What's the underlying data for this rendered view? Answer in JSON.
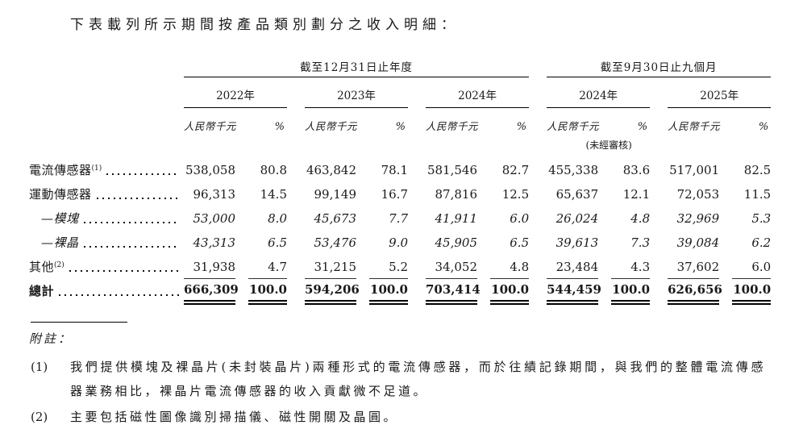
{
  "intro": "下表載列所示期間按產品類別劃分之收入明細：",
  "table": {
    "groups": [
      {
        "label": "截至12月31日止年度",
        "years": [
          "2022年",
          "2023年",
          "2024年"
        ]
      },
      {
        "label": "截至9月30日止九個月",
        "years": [
          "2024年",
          "2025年"
        ]
      }
    ],
    "unit_header": "人民幣千元",
    "pct_header": "%",
    "unaudited_note": "(未經審核)",
    "rows": [
      {
        "label": "電流傳感器",
        "sup": "(1)",
        "italic": false,
        "values": [
          "538,058",
          "80.8",
          "463,842",
          "78.1",
          "581,546",
          "82.7",
          "455,338",
          "83.6",
          "517,001",
          "82.5"
        ]
      },
      {
        "label": "運動傳感器",
        "sup": "",
        "italic": false,
        "values": [
          "96,313",
          "14.5",
          "99,149",
          "16.7",
          "87,816",
          "12.5",
          "65,637",
          "12.1",
          "72,053",
          "11.5"
        ]
      },
      {
        "label": "—模塊",
        "sup": "",
        "italic": true,
        "values": [
          "53,000",
          "8.0",
          "45,673",
          "7.7",
          "41,911",
          "6.0",
          "26,024",
          "4.8",
          "32,969",
          "5.3"
        ]
      },
      {
        "label": "—裸晶",
        "sup": "",
        "italic": true,
        "values": [
          "43,313",
          "6.5",
          "53,476",
          "9.0",
          "45,905",
          "6.5",
          "39,613",
          "7.3",
          "39,084",
          "6.2"
        ]
      },
      {
        "label": "其他",
        "sup": "(2)",
        "italic": false,
        "values": [
          "31,938",
          "4.7",
          "31,215",
          "5.2",
          "34,052",
          "4.8",
          "23,484",
          "4.3",
          "37,602",
          "6.0"
        ]
      }
    ],
    "total": {
      "label": "總計",
      "sup": "",
      "italic": false,
      "values": [
        "666,309",
        "100.0",
        "594,206",
        "100.0",
        "703,414",
        "100.0",
        "544,459",
        "100.0",
        "626,656",
        "100.0"
      ]
    }
  },
  "notes": {
    "heading": "附註：",
    "items": [
      {
        "num": "(1)",
        "text": "我們提供模塊及裸晶片(未封裝晶片)兩種形式的電流傳感器，而於往績記錄期間，與我們的整體電流傳感器業務相比，裸晶片電流傳感器的收入貢獻微不足道。"
      },
      {
        "num": "(2)",
        "text": "主要包括磁性圖像識別掃描儀、磁性開關及晶圓。"
      }
    ]
  }
}
